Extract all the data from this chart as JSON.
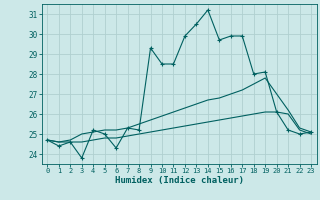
{
  "xlabel": "Humidex (Indice chaleur)",
  "xlim": [
    -0.5,
    23.5
  ],
  "ylim": [
    23.5,
    31.5
  ],
  "yticks": [
    24,
    25,
    26,
    27,
    28,
    29,
    30,
    31
  ],
  "xticks": [
    0,
    1,
    2,
    3,
    4,
    5,
    6,
    7,
    8,
    9,
    10,
    11,
    12,
    13,
    14,
    15,
    16,
    17,
    18,
    19,
    20,
    21,
    22,
    23
  ],
  "background_color": "#cce8e8",
  "grid_color": "#b0d0d0",
  "line_color": "#006060",
  "line1_y": [
    24.7,
    24.4,
    24.6,
    23.8,
    25.2,
    25.0,
    24.3,
    25.3,
    25.2,
    29.3,
    28.5,
    28.5,
    29.9,
    30.5,
    31.2,
    29.7,
    29.9,
    29.9,
    28.0,
    28.1,
    26.1,
    25.2,
    25.0,
    25.1
  ],
  "line2_y": [
    24.7,
    24.6,
    24.7,
    25.0,
    25.1,
    25.2,
    25.2,
    25.3,
    25.5,
    25.7,
    25.9,
    26.1,
    26.3,
    26.5,
    26.7,
    26.8,
    27.0,
    27.2,
    27.5,
    27.8,
    27.0,
    26.2,
    25.3,
    25.1
  ],
  "line3_y": [
    24.7,
    24.6,
    24.6,
    24.6,
    24.7,
    24.8,
    24.8,
    24.9,
    25.0,
    25.1,
    25.2,
    25.3,
    25.4,
    25.5,
    25.6,
    25.7,
    25.8,
    25.9,
    26.0,
    26.1,
    26.1,
    26.0,
    25.2,
    25.0
  ]
}
